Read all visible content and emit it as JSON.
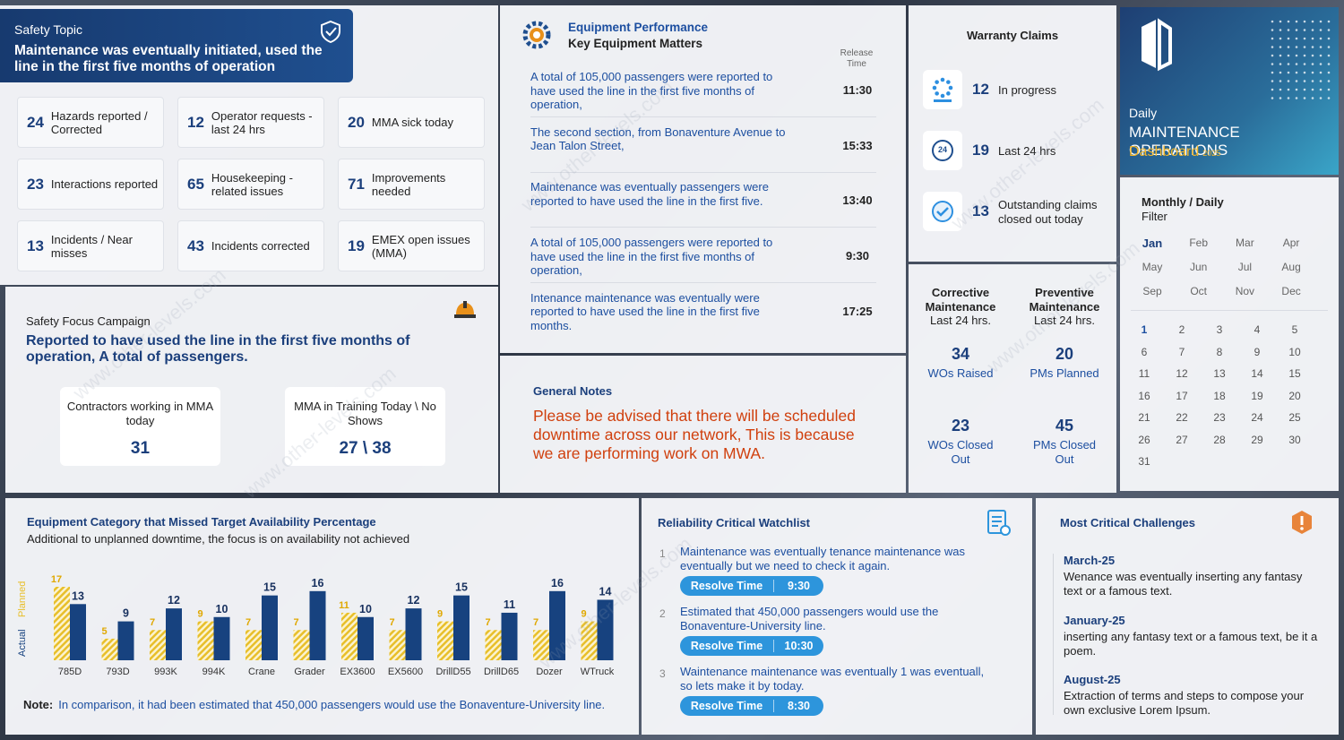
{
  "safety_topic": {
    "label": "Safety Topic",
    "headline": "Maintenance was eventually initiated, used the line in the first five months of operation",
    "tiles": [
      {
        "value": 24,
        "label": "Hazards reported / Corrected"
      },
      {
        "value": 12,
        "label": "Operator requests - last 24 hrs"
      },
      {
        "value": 20,
        "label": "MMA sick today"
      },
      {
        "value": 23,
        "label": "Interactions reported"
      },
      {
        "value": 65,
        "label": "Housekeeping - related issues"
      },
      {
        "value": 71,
        "label": "Improvements needed"
      },
      {
        "value": 13,
        "label": "Incidents / Near misses"
      },
      {
        "value": 43,
        "label": "Incidents corrected"
      },
      {
        "value": 19,
        "label": "EMEX open issues (MMA)"
      }
    ]
  },
  "safety_focus": {
    "title": "Safety Focus Campaign",
    "headline": "Reported to have used the line in the first five months of operation, A total of passengers.",
    "cards": [
      {
        "label": "Contractors working in MMA today",
        "value": "31"
      },
      {
        "label": "MMA in Training Today \\ No Shows",
        "value": "27 \\ 38"
      }
    ]
  },
  "equipment_performance": {
    "title": "Equipment Performance",
    "subtitle": "Key Equipment Matters",
    "time_header": "Release Time",
    "rows": [
      {
        "text": "A total of 105,000 passengers were reported to have used the line in the first five months of operation,",
        "time": "11:30"
      },
      {
        "text": "The second section, from Bonaventure Avenue to Jean Talon Street,",
        "time": "15:33"
      },
      {
        "text": "Maintenance was eventually passengers were reported to have used the line in the first five.",
        "time": "13:40"
      },
      {
        "text": "A total of 105,000 passengers were reported to have used the line in the first five months of operation,",
        "time": "9:30"
      },
      {
        "text": "Intenance maintenance was eventually were reported to have used the line in the first five months.",
        "time": "17:25"
      }
    ]
  },
  "general_notes": {
    "title": "General Notes",
    "text": "Please be advised that there will be scheduled downtime across our network, This is because we are performing work on MWA."
  },
  "warranty_claims": {
    "title": "Warranty Claims",
    "icon_text": "24",
    "items": [
      {
        "value": 12,
        "label": "In progress"
      },
      {
        "value": 19,
        "label": "Last 24 hrs"
      },
      {
        "value": 13,
        "label": "Outstanding claims closed out today"
      }
    ]
  },
  "maintenance": {
    "columns": [
      {
        "title": "Corrective Maintenance",
        "period": "Last 24 hrs.",
        "stats": [
          {
            "value": 34,
            "label": "WOs Raised"
          },
          {
            "value": 23,
            "label": "WOs Closed Out"
          }
        ]
      },
      {
        "title": "Preventive Maintenance",
        "period": "Last 24 hrs.",
        "stats": [
          {
            "value": 20,
            "label": "PMs Planned"
          },
          {
            "value": 45,
            "label": "PMs Closed Out"
          }
        ]
      }
    ]
  },
  "brand": {
    "period": "Daily",
    "title": "MAINTENANCE OPERATIONS",
    "subtitle": "Dashboard",
    "year": "2025"
  },
  "calendar": {
    "title": "Monthly / Daily",
    "subtitle": "Filter",
    "months": [
      "Jan",
      "Feb",
      "Mar",
      "Apr",
      "May",
      "Jun",
      "Jul",
      "Aug",
      "Sep",
      "Oct",
      "Nov",
      "Dec"
    ],
    "days": [
      1,
      2,
      3,
      4,
      5,
      6,
      7,
      8,
      9,
      10,
      11,
      12,
      13,
      14,
      15,
      16,
      17,
      18,
      19,
      20,
      21,
      22,
      23,
      24,
      25,
      26,
      27,
      28,
      29,
      30,
      31
    ]
  },
  "chart_data": {
    "type": "bar",
    "title": "Equipment Category that Missed Target Availability Percentage",
    "subtitle": "Additional to unplanned downtime, the focus is on availability not achieved",
    "categories": [
      "785D",
      "793D",
      "993K",
      "994K",
      "Crane",
      "Grader",
      "EX3600",
      "EX5600",
      "DrillD55",
      "DrillD65",
      "Dozer",
      "WTruck"
    ],
    "series": [
      {
        "name": "Actual",
        "color": "#17427f",
        "values": [
          13,
          9,
          12,
          10,
          15,
          16,
          10,
          12,
          15,
          11,
          16,
          14
        ]
      },
      {
        "name": "Planned",
        "color": "#e8bf2a",
        "values": [
          17,
          5,
          7,
          9,
          7,
          7,
          11,
          7,
          9,
          7,
          7,
          9
        ]
      }
    ],
    "note_label": "Note:",
    "note": "In comparison, it had been estimated that 450,000 passengers would use the Bonaventure-University line."
  },
  "watchlist": {
    "title": "Reliability Critical Watchlist",
    "resolve_label": "Resolve Time",
    "items": [
      {
        "number": 1,
        "text": "Maintenance was eventually tenance maintenance was eventually but we need to check it again.",
        "time": "9:30"
      },
      {
        "number": 2,
        "text": "Estimated that 450,000 passengers would use the Bonaventure-University line.",
        "time": "10:30"
      },
      {
        "number": 3,
        "text": "Waintenance maintenance was eventually 1 was eventuall, so lets make it by today.",
        "time": "8:30"
      }
    ]
  },
  "challenges": {
    "title": "Most Critical Challenges",
    "items": [
      {
        "date": "March-25",
        "text": "Wenance was eventually inserting any fantasy text or a famous text."
      },
      {
        "date": "January-25",
        "text": "inserting any fantasy text or a famous text, be it a poem."
      },
      {
        "date": "August-25",
        "text": "Extraction of terms and steps to compose your own exclusive Lorem Ipsum."
      }
    ]
  },
  "watermark": "www.other-levels.com"
}
